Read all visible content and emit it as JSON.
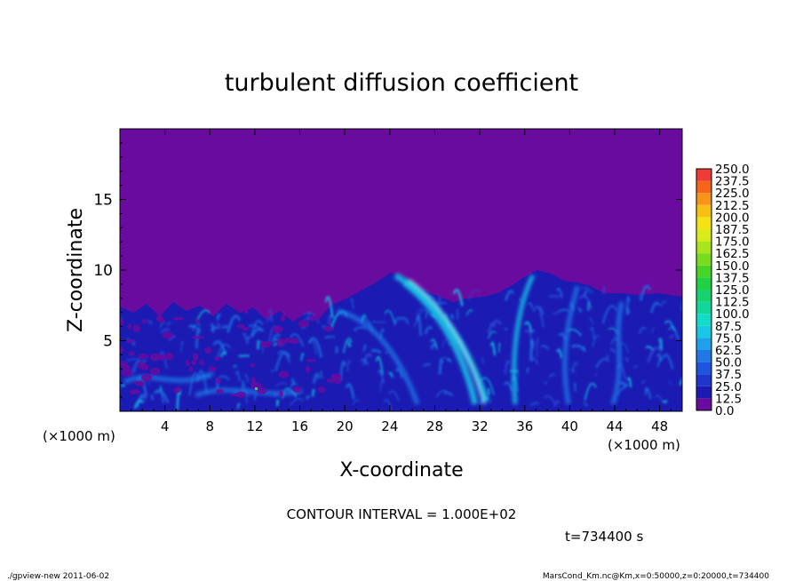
{
  "chart_data": {
    "type": "heatmap",
    "title": "turbulent diffusion coefficient",
    "xlabel": "X-coordinate",
    "ylabel": "Z-coordinate",
    "x_unit": "(×1000 m)",
    "y_unit": "(×1000 m)",
    "xlim": [
      0,
      50
    ],
    "ylim": [
      0,
      20
    ],
    "x_ticks": [
      4,
      8,
      12,
      16,
      20,
      24,
      28,
      32,
      36,
      40,
      44,
      48
    ],
    "y_ticks": [
      5,
      10,
      15
    ],
    "contour_interval_text": "CONTOUR INTERVAL = 1.000E+02",
    "time_text": "t=734400 s",
    "colorbar": {
      "levels": [
        "0.0",
        "12.5",
        "25.0",
        "37.5",
        "50.0",
        "62.5",
        "75.0",
        "87.5",
        "100.0",
        "112.5",
        "125.0",
        "137.5",
        "150.0",
        "162.5",
        "175.0",
        "187.5",
        "200.0",
        "212.5",
        "225.0",
        "237.5",
        "250.0"
      ],
      "colors": [
        "#6a0ba0",
        "#1b1bb3",
        "#1e36cc",
        "#1f55de",
        "#1f78e6",
        "#1ea0ea",
        "#16c8e6",
        "#10dcc8",
        "#10d79a",
        "#18d26e",
        "#22d044",
        "#46d426",
        "#78dc1c",
        "#aae41a",
        "#d8ec1a",
        "#f6e214",
        "#f8c012",
        "#f89418",
        "#f4641a",
        "#f03a36",
        "#f07a8a"
      ]
    },
    "dominant_value_above_layer": "0.0",
    "mixed_layer_top_km_approx": 8
  },
  "footer": {
    "left": "./gpview-new  2011-06-02",
    "right": "MarsCond_Km.nc@Km,x=0:50000,z=0:20000,t=734400"
  },
  "colors": {
    "background_field": "#6a0ba0",
    "turbulence_low": "#1b1bb3",
    "turbulence_mid": "#1f78e6",
    "turbulence_high": "#16c8e6"
  }
}
